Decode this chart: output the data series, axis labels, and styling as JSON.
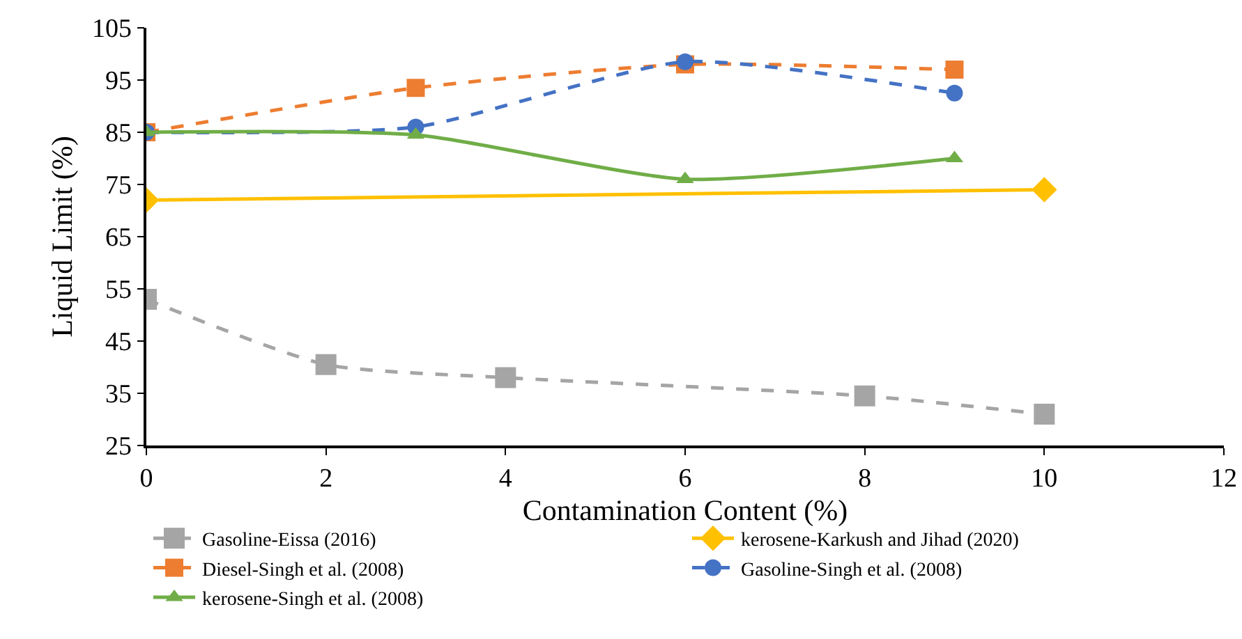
{
  "chart_data": {
    "type": "line",
    "xlabel": "Contamination Content (%)",
    "ylabel": "Liquid Limit (%)",
    "xlim": [
      0,
      12
    ],
    "xticks": [
      0,
      2,
      4,
      6,
      8,
      10,
      12
    ],
    "ylim": [
      25,
      105
    ],
    "yticks": [
      25,
      35,
      45,
      55,
      65,
      75,
      85,
      95,
      105
    ],
    "grid": false,
    "legend": "bottom",
    "series": [
      {
        "name": "Gasoline-Eissa (2016)",
        "color": "#a5a5a5",
        "marker": "square",
        "line_style": "dashed",
        "x": [
          0,
          2,
          4,
          8,
          10
        ],
        "values": [
          53,
          40.5,
          38,
          34.5,
          31
        ]
      },
      {
        "name": "kerosene-Karkush and Jihad (2020)",
        "color": "#ffc000",
        "marker": "diamond",
        "line_style": "solid",
        "x": [
          0,
          10
        ],
        "values": [
          72,
          74
        ]
      },
      {
        "name": "Diesel-Singh et al. (2008)",
        "color": "#ed7d31",
        "marker": "square",
        "line_style": "dashed",
        "x": [
          0,
          3,
          6,
          9
        ],
        "values": [
          85,
          93.5,
          98,
          97
        ]
      },
      {
        "name": "Gasoline-Singh et al. (2008)",
        "color": "#4472c4",
        "marker": "circle",
        "line_style": "dashed",
        "x": [
          0,
          3,
          6,
          9
        ],
        "values": [
          85,
          86,
          98.5,
          92.5
        ]
      },
      {
        "name": "kerosene-Singh et al. (2008)",
        "color": "#70ad47",
        "marker": "triangle",
        "line_style": "solid",
        "x": [
          0,
          3,
          6,
          9
        ],
        "values": [
          85,
          84.5,
          76,
          80
        ]
      }
    ]
  }
}
